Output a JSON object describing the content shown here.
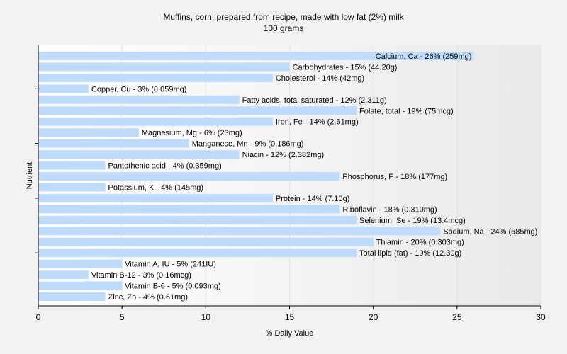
{
  "chart_data": {
    "type": "bar",
    "orientation": "horizontal",
    "title": "Muffins, corn, prepared from recipe, made with low fat (2%) milk",
    "subtitle": "100 grams",
    "xlabel": "% Daily Value",
    "ylabel": "Nutrient",
    "xlim": [
      0,
      30
    ],
    "xticks": [
      0,
      5,
      10,
      15,
      20,
      25,
      30
    ],
    "grid": true,
    "bar_color": "#bfdbfc",
    "categories": [
      "Calcium, Ca",
      "Carbohydrates",
      "Cholesterol",
      "Copper, Cu",
      "Fatty acids, total saturated",
      "Folate, total",
      "Iron, Fe",
      "Magnesium, Mg",
      "Manganese, Mn",
      "Niacin",
      "Pantothenic acid",
      "Phosphorus, P",
      "Potassium, K",
      "Protein",
      "Riboflavin",
      "Selenium, Se",
      "Sodium, Na",
      "Thiamin",
      "Total lipid (fat)",
      "Vitamin A, IU",
      "Vitamin B-12",
      "Vitamin B-6",
      "Zinc, Zn"
    ],
    "values": [
      26,
      15,
      14,
      3,
      12,
      19,
      14,
      6,
      9,
      12,
      4,
      18,
      4,
      14,
      18,
      19,
      24,
      20,
      19,
      5,
      3,
      5,
      4
    ],
    "labels": [
      "Calcium, Ca - 26% (259mg)",
      "Carbohydrates - 15% (44.20g)",
      "Cholesterol - 14% (42mg)",
      "Copper, Cu - 3% (0.059mg)",
      "Fatty acids, total saturated - 12% (2.311g)",
      "Folate, total - 19% (75mcg)",
      "Iron, Fe - 14% (2.61mg)",
      "Magnesium, Mg - 6% (23mg)",
      "Manganese, Mn - 9% (0.186mg)",
      "Niacin - 12% (2.382mg)",
      "Pantothenic acid - 4% (0.359mg)",
      "Phosphorus, P - 18% (177mg)",
      "Potassium, K - 4% (145mg)",
      "Protein - 14% (7.10g)",
      "Riboflavin - 18% (0.310mg)",
      "Selenium, Se - 19% (13.4mcg)",
      "Sodium, Na - 24% (585mg)",
      "Thiamin - 20% (0.303mg)",
      "Total lipid (fat) - 19% (12.30g)",
      "Vitamin A, IU - 5% (241IU)",
      "Vitamin B-12 - 3% (0.16mcg)",
      "Vitamin B-6 - 5% (0.093mg)",
      "Zinc, Zn - 4% (0.61mg)"
    ]
  }
}
